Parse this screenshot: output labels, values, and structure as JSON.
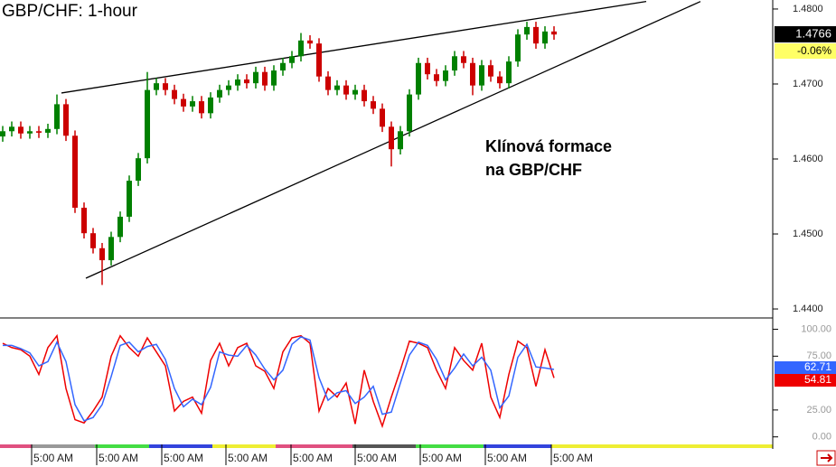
{
  "chart_data": [
    {
      "type": "candlestick",
      "title": "GBP/CHF: 1-hour",
      "annotation": [
        "Klínová formace",
        "na GBP/CHF"
      ],
      "last_price_label": "1.4766",
      "change_label": "-0.06%",
      "up_color": "#008000",
      "down_color": "#cc0000",
      "xlim": [
        -0.3,
        85.2
      ],
      "xticks": [
        {
          "value": 3.2,
          "label": "5:00 AM"
        },
        {
          "value": 10.4,
          "label": "5:00 AM"
        },
        {
          "value": 17.6,
          "label": "5:00 AM"
        },
        {
          "value": 24.7,
          "label": "5:00 AM"
        },
        {
          "value": 31.9,
          "label": "5:00 AM"
        },
        {
          "value": 39.0,
          "label": "5:00 AM"
        },
        {
          "value": 46.2,
          "label": "5:00 AM"
        },
        {
          "value": 53.4,
          "label": "5:00 AM"
        },
        {
          "value": 60.7,
          "label": "5:00 AM"
        }
      ],
      "ylim": [
        1.4388,
        1.4812
      ],
      "yticks": [
        {
          "value": 1.48,
          "label": "1.4800"
        },
        {
          "value": 1.47,
          "label": "1.4700"
        },
        {
          "value": 1.46,
          "label": "1.4600"
        },
        {
          "value": 1.45,
          "label": "1.4500"
        },
        {
          "value": 1.44,
          "label": "1.4400"
        }
      ],
      "open": [
        1.463,
        1.4637,
        1.4643,
        1.4634,
        1.4637,
        1.4635,
        1.464,
        1.4673,
        1.4631,
        1.4535,
        1.4501,
        1.4481,
        1.4465,
        1.4496,
        1.4523,
        1.4571,
        1.4601,
        1.4692,
        1.4701,
        1.4692,
        1.468,
        1.467,
        1.4677,
        1.4661,
        1.4682,
        1.4692,
        1.4698,
        1.4706,
        1.4701,
        1.4716,
        1.4698,
        1.4718,
        1.4728,
        1.4737,
        1.4758,
        1.4754,
        1.471,
        1.4692,
        1.4698,
        1.4686,
        1.4692,
        1.4677,
        1.4667,
        1.4643,
        1.4613,
        1.4637,
        1.4686,
        1.4728,
        1.4713,
        1.4704,
        1.4718,
        1.4737,
        1.4728,
        1.4698,
        1.4725,
        1.471,
        1.4701,
        1.473,
        1.4766,
        1.4776,
        1.4754,
        1.477
      ],
      "high": [
        1.4644,
        1.465,
        1.465,
        1.4644,
        1.4644,
        1.4647,
        1.4686,
        1.468,
        1.4638,
        1.4542,
        1.4508,
        1.4488,
        1.4503,
        1.453,
        1.4578,
        1.4608,
        1.4716,
        1.4708,
        1.4708,
        1.4699,
        1.4687,
        1.4684,
        1.4684,
        1.4689,
        1.4699,
        1.4705,
        1.4713,
        1.4713,
        1.4723,
        1.4723,
        1.4725,
        1.4735,
        1.4744,
        1.4768,
        1.4765,
        1.4761,
        1.4717,
        1.4705,
        1.4705,
        1.4699,
        1.4699,
        1.4684,
        1.4674,
        1.465,
        1.4644,
        1.4693,
        1.4735,
        1.4735,
        1.472,
        1.4725,
        1.4744,
        1.4744,
        1.4735,
        1.4732,
        1.4732,
        1.4717,
        1.4737,
        1.4773,
        1.4783,
        1.4783,
        1.4777,
        1.4777
      ],
      "low": [
        1.4623,
        1.463,
        1.4627,
        1.4627,
        1.4628,
        1.4628,
        1.4633,
        1.4624,
        1.4528,
        1.4494,
        1.4474,
        1.4432,
        1.4458,
        1.4489,
        1.4516,
        1.4564,
        1.4594,
        1.4685,
        1.4685,
        1.4673,
        1.4663,
        1.4663,
        1.4654,
        1.4654,
        1.4675,
        1.4685,
        1.4691,
        1.4694,
        1.4694,
        1.4691,
        1.4691,
        1.4711,
        1.4721,
        1.473,
        1.4747,
        1.4703,
        1.4685,
        1.4685,
        1.4679,
        1.4679,
        1.467,
        1.466,
        1.4636,
        1.459,
        1.4606,
        1.463,
        1.4679,
        1.4706,
        1.4697,
        1.4697,
        1.4711,
        1.4721,
        1.4685,
        1.4691,
        1.4703,
        1.4694,
        1.4694,
        1.4723,
        1.4759,
        1.4747,
        1.4747,
        1.4759
      ],
      "close": [
        1.4637,
        1.4643,
        1.4634,
        1.4637,
        1.4635,
        1.464,
        1.4673,
        1.4631,
        1.4535,
        1.4501,
        1.4481,
        1.4465,
        1.4496,
        1.4523,
        1.4571,
        1.4601,
        1.4692,
        1.4701,
        1.4692,
        1.468,
        1.467,
        1.4677,
        1.4661,
        1.4682,
        1.4692,
        1.4698,
        1.4706,
        1.4701,
        1.4716,
        1.4698,
        1.4718,
        1.4728,
        1.4737,
        1.4758,
        1.4754,
        1.471,
        1.4692,
        1.4698,
        1.4686,
        1.4692,
        1.4677,
        1.4667,
        1.4643,
        1.4613,
        1.4637,
        1.4686,
        1.4728,
        1.4713,
        1.4704,
        1.4718,
        1.4737,
        1.4728,
        1.4698,
        1.4725,
        1.471,
        1.4701,
        1.473,
        1.4766,
        1.4776,
        1.4754,
        1.477,
        1.4766
      ],
      "trendlines": [
        {
          "x": [
            6.5,
            71.2
          ],
          "y": [
            1.4688,
            1.481
          ]
        },
        {
          "x": [
            9.2,
            77.2
          ],
          "y": [
            1.4441,
            1.481
          ]
        }
      ]
    },
    {
      "type": "line",
      "ylim": [
        -7,
        108
      ],
      "yticks": [
        {
          "value": 100,
          "label": "100.00"
        },
        {
          "value": 75,
          "label": "75.00"
        },
        {
          "value": 25,
          "label": "25.00"
        },
        {
          "value": 0,
          "label": "0.00"
        }
      ],
      "series": [
        {
          "color": "#ee0000",
          "last_label": "54.81",
          "values": [
            87,
            83,
            81,
            75,
            58,
            83,
            94,
            45,
            16,
            13,
            24,
            37,
            75,
            94,
            83,
            75,
            92,
            79,
            66,
            24,
            33,
            37,
            22,
            71,
            87,
            66,
            83,
            87,
            66,
            61,
            45,
            79,
            92,
            94,
            87,
            24,
            45,
            37,
            50,
            12,
            62,
            33,
            10,
            37,
            62,
            89,
            87,
            83,
            62,
            45,
            83,
            71,
            62,
            87,
            37,
            18,
            58,
            89,
            83,
            47,
            81,
            54.81
          ]
        },
        {
          "color": "#3366ff",
          "last_label": "62.71",
          "values": [
            85,
            85,
            82,
            78,
            66,
            70,
            88,
            70,
            30,
            15,
            18,
            30,
            56,
            85,
            88,
            79,
            84,
            86,
            72,
            45,
            28,
            35,
            30,
            46,
            79,
            76,
            75,
            85,
            76,
            63,
            53,
            62,
            86,
            93,
            90,
            55,
            34,
            41,
            43,
            31,
            37,
            47,
            21,
            23,
            50,
            76,
            88,
            85,
            72,
            53,
            64,
            77,
            66,
            74,
            62,
            27,
            38,
            74,
            86,
            65,
            64,
            62.71
          ]
        }
      ]
    }
  ]
}
